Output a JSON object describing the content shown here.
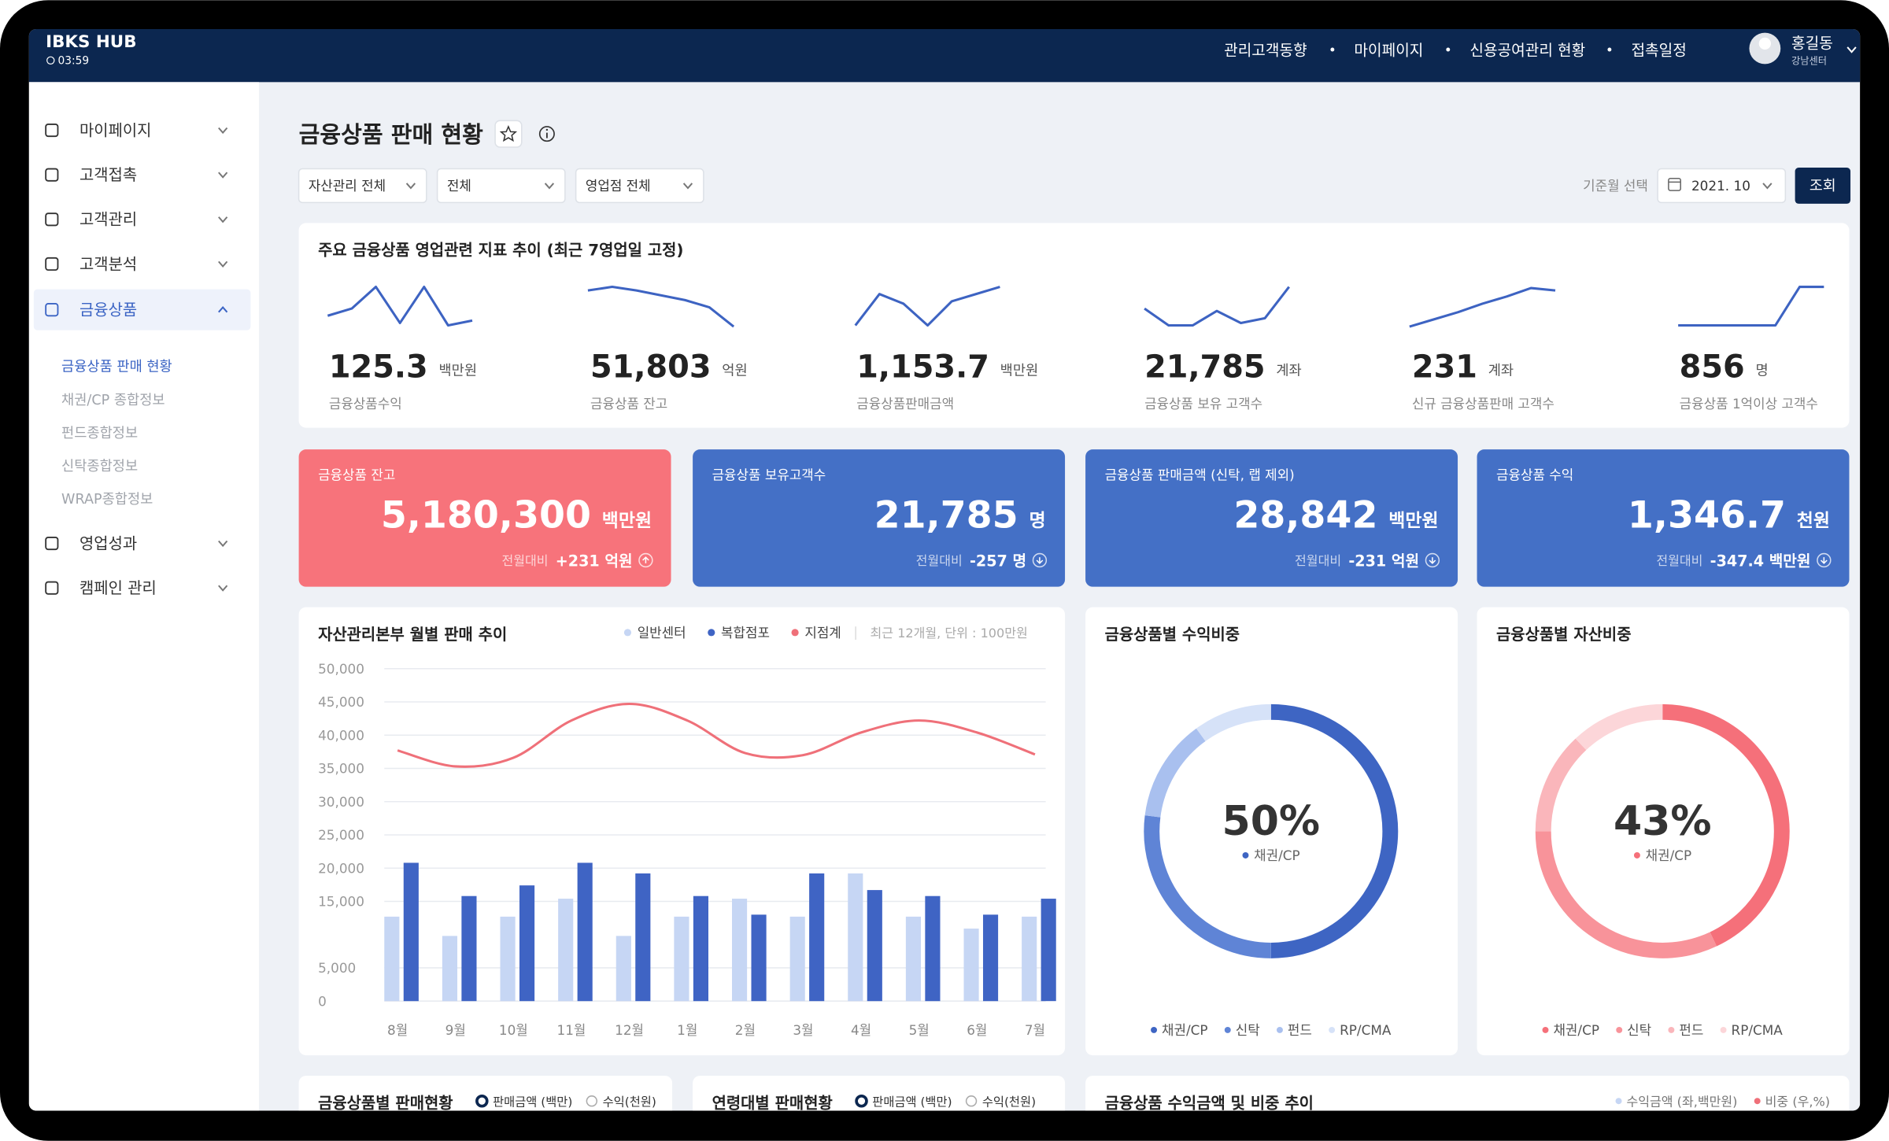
{
  "header": {
    "brand": "IBKS HUB",
    "time": "03:59",
    "nav": [
      "관리고객동향",
      "마이페이지",
      "신용공여관리 현황",
      "접촉일정"
    ],
    "user": {
      "name": "홍길동",
      "branch": "강남센터"
    }
  },
  "sidebar": {
    "menu": [
      "마이페이지",
      "고객접촉",
      "고객관리",
      "고객분석",
      "금융상품",
      "영업성과",
      "캠페인 관리"
    ],
    "submenu": [
      "금융상품 판매 현황",
      "채권/CP 종합정보",
      "펀드종합정보",
      "신탁종합정보",
      "WRAP종합정보"
    ]
  },
  "page": {
    "title": "금융상품 판매 현황",
    "filters": [
      "자산관리 전체",
      "전체",
      "영업점 전체"
    ],
    "date_label": "기준월 선택",
    "date": "2021. 10",
    "button": "조회"
  },
  "kpi": {
    "title": "주요 금융상품 영업관련 지표 추이 (최근 7영업일 고정)",
    "sparkline_color": "#3d63c2",
    "sparkline_ylim": [
      0,
      35
    ],
    "items": [
      {
        "value": "125.3",
        "unit": "백만원",
        "label": "금융상품수익",
        "trend": [
          9,
          15,
          33,
          3,
          33,
          1,
          5
        ]
      },
      {
        "value": "51,803",
        "unit": "억원",
        "label": "금융상품 잔고",
        "trend": [
          30,
          33,
          30,
          26,
          22,
          16,
          0
        ]
      },
      {
        "value": "1,153.7",
        "unit": "백만원",
        "label": "금융상품판매금액",
        "trend": [
          1,
          27,
          19,
          1,
          21,
          27,
          33
        ]
      },
      {
        "value": "21,785",
        "unit": "계좌",
        "label": "금융상품 보유 고객수",
        "trend": [
          15,
          1,
          1,
          13,
          3,
          7,
          33
        ]
      },
      {
        "value": "231",
        "unit": "계좌",
        "label": "신규 금융상품판매 고객수",
        "trend": [
          0,
          6,
          12,
          19,
          25,
          32,
          30
        ]
      },
      {
        "value": "856",
        "unit": "명",
        "label": "금융상품 1억이상 고객수",
        "trend": [
          1,
          1,
          1,
          1,
          1,
          33,
          33
        ]
      }
    ]
  },
  "cards": [
    {
      "title": "금융상품 잔고",
      "value": "5,180,300",
      "unit": "백만원",
      "compare_label": "전월대비",
      "change": "+231 억원",
      "direction": "up",
      "color": "#f7737b"
    },
    {
      "title": "금융상품 보유고객수",
      "value": "21,785",
      "unit": "명",
      "compare_label": "전월대비",
      "change": "-257 명",
      "direction": "down",
      "color": "#4470c6"
    },
    {
      "title": "금융상품 판매금액 (신탁, 랩 제외)",
      "value": "28,842",
      "unit": "백만원",
      "compare_label": "전월대비",
      "change": "-231 억원",
      "direction": "down",
      "color": "#4470c6"
    },
    {
      "title": "금융상품 수익",
      "value": "1,346.7",
      "unit": "천원",
      "compare_label": "전월대비",
      "change": "-347.4 백만원",
      "direction": "down",
      "color": "#4470c6"
    }
  ],
  "chart_data": [
    {
      "type": "bar",
      "title": "자산관리본부 월별 판매 추이",
      "note": "최근 12개월, 단위 : 100만원",
      "categories": [
        "8월",
        "9월",
        "10월",
        "11월",
        "12월",
        "1월",
        "2월",
        "3월",
        "4월",
        "5월",
        "6월",
        "7월"
      ],
      "series": [
        {
          "name": "일반센터",
          "type": "bar",
          "color": "#c6d6f4",
          "values": [
            12700,
            9800,
            12700,
            15400,
            9800,
            12700,
            15400,
            12700,
            19200,
            12700,
            10900,
            12700
          ]
        },
        {
          "name": "복합점포",
          "type": "bar",
          "color": "#3f64c4",
          "values": [
            20800,
            15800,
            17400,
            20800,
            19200,
            15800,
            13000,
            19200,
            16700,
            15800,
            13000,
            15400
          ]
        },
        {
          "name": "지점계",
          "type": "line",
          "color": "#ef7079",
          "values": [
            37700,
            35300,
            36600,
            42200,
            44700,
            42200,
            37300,
            37000,
            40400,
            42200,
            40400,
            37100
          ]
        }
      ],
      "ylim": [
        0,
        50000
      ],
      "yticks": [
        0,
        {
          "value": 5000,
          "label": "5,000"
        },
        {
          "value": 15000,
          "label": "15,000"
        },
        {
          "value": 20000,
          "label": "20,000"
        },
        {
          "value": 25000,
          "label": "25,000"
        },
        {
          "value": 30000,
          "label": "30,000"
        },
        {
          "value": 35000,
          "label": "35,000"
        },
        {
          "value": 40000,
          "label": "40,000"
        },
        {
          "value": 45000,
          "label": "45,000"
        },
        {
          "value": 50000,
          "label": "50,000"
        }
      ],
      "grid": true
    },
    {
      "type": "donut",
      "title": "금융상품별 수익비중",
      "categories": [
        "채권/CP",
        "신탁",
        "펀드",
        "RP/CMA"
      ],
      "values": [
        50,
        27,
        13,
        10
      ],
      "value_labels": [
        "50%",
        null,
        null,
        null
      ],
      "colors": [
        "#3e65c3",
        "#5f84d6",
        "#a9c0ef",
        "#d6e2f8"
      ]
    },
    {
      "type": "donut",
      "title": "금융상품별 자산비중",
      "categories": [
        "채권/CP",
        "신탁",
        "펀드",
        "RP/CMA"
      ],
      "values": [
        43,
        32,
        13,
        12
      ],
      "value_labels": [
        "43%",
        null,
        null,
        null
      ],
      "colors": [
        "#f5707a",
        "#f8939a",
        "#fab6bb",
        "#fcd6d9"
      ]
    }
  ],
  "bottom_panels": [
    {
      "title": "금융상품별 판매현황",
      "options": [
        "판매금액 (백만)",
        "수익(천원)"
      ]
    },
    {
      "title": "연령대별 판매현황",
      "options": [
        "판매금액 (백만)",
        "수익(천원)"
      ]
    },
    {
      "title": "금융상품 수익금액 및 비중 추이",
      "legend": [
        {
          "name": "수익금액 (좌,백만원)",
          "color": "#c6d6f4"
        },
        {
          "name": "비중 (우,%)",
          "color": "#ef7079"
        }
      ]
    }
  ]
}
